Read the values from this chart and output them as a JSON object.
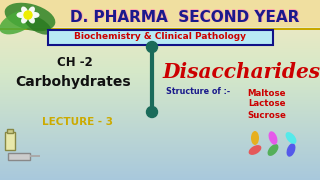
{
  "title": "D. PHARMA  SECOND YEAR",
  "subtitle": "Biochemistry & Clinical Pathology",
  "ch_label": "CH -2",
  "topic": "Carbohydrates",
  "lecture": "LECTURE - 3",
  "main_topic": "Disaccharides",
  "structure_label": "Structure of :-",
  "items": [
    "Maltose",
    "Lactose",
    "Sucrose"
  ],
  "title_color": "#1a1a8c",
  "title_stroke": "#ff9999",
  "subtitle_bg": "#b8eaf5",
  "subtitle_border": "#1a1a8c",
  "subtitle_text_color": "#cc0000",
  "ch_color": "#111111",
  "topic_color": "#111111",
  "lecture_color": "#ccaa00",
  "main_topic_color": "#cc0000",
  "structure_color": "#1a1a8c",
  "items_color": "#cc0000",
  "divider_color": "#1a6b5a",
  "bg_top": "#f5e8c0",
  "bg_mid": "#d5e8c8",
  "bg_bot": "#a8c8dc",
  "gold_bar": "#c8a800",
  "figsize": [
    3.2,
    1.8
  ],
  "dpi": 100
}
